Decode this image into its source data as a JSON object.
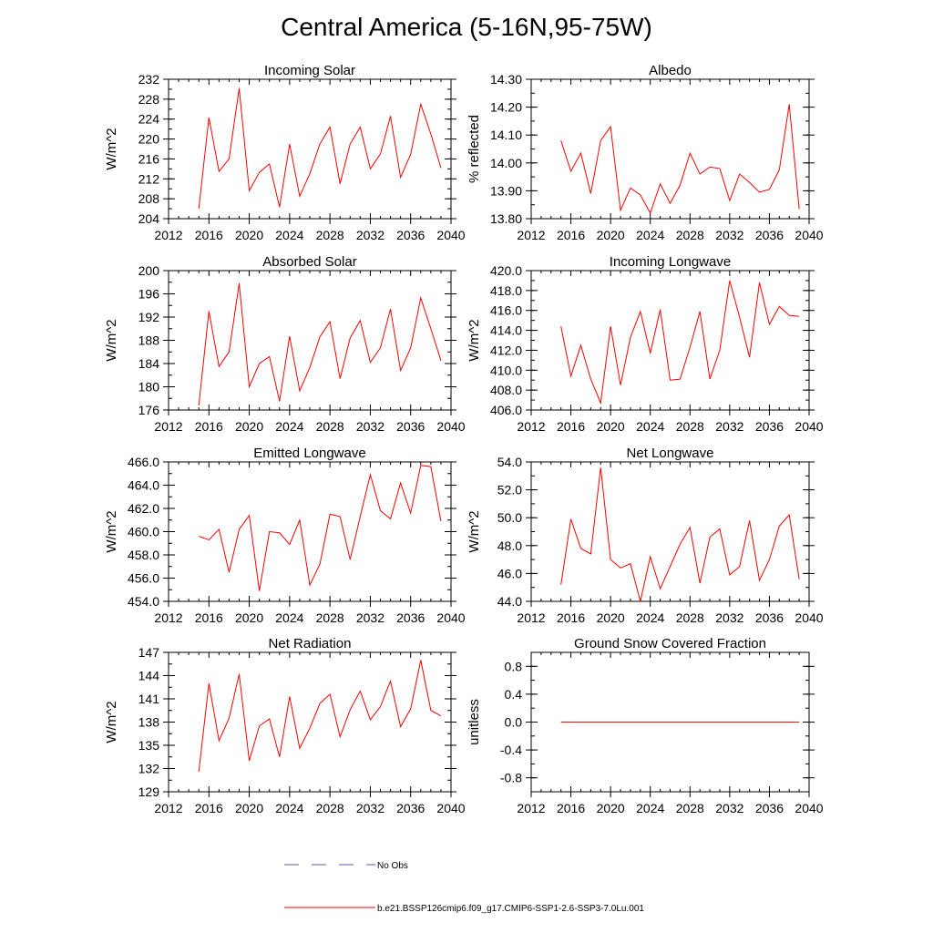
{
  "title": "Central America (5-16N,95-75W)",
  "colors": {
    "model": "#ff0000",
    "obs": "#5a5aa0",
    "axis": "#000000"
  },
  "legend": {
    "obs_label": "No Obs",
    "model_label": "b.e21.BSSP126cmip6.f09_g17.CMIP6-SSP1-2.6-SSP3-7.0Lu.001"
  },
  "chart_data": [
    {
      "type": "line",
      "title": "Incoming Solar",
      "ylabel": "W/m^2",
      "xlim": [
        2012,
        2040
      ],
      "xticks": [
        2012,
        2016,
        2020,
        2024,
        2028,
        2032,
        2036,
        2040
      ],
      "ylim": [
        204,
        232
      ],
      "yticks": [
        "204",
        "208",
        "212",
        "216",
        "220",
        "224",
        "228",
        "232"
      ],
      "x": [
        2015,
        2016,
        2017,
        2018,
        2019,
        2020,
        2021,
        2022,
        2023,
        2024,
        2025,
        2026,
        2027,
        2028,
        2029,
        2030,
        2031,
        2032,
        2033,
        2034,
        2035,
        2036,
        2037,
        2038,
        2039
      ],
      "series": [
        {
          "name": "b.e21.BSSP126cmip6.f09_g17.CMIP6-SSP1-2.6-SSP3-7.0Lu.001",
          "values": [
            206.0,
            224.3,
            213.5,
            216.0,
            230.2,
            209.6,
            213.3,
            215.0,
            206.3,
            219.0,
            208.5,
            213.0,
            219.0,
            222.4,
            211.0,
            219.0,
            222.4,
            214.0,
            217.0,
            224.6,
            212.3,
            216.9,
            227.0,
            221.0,
            214.2
          ]
        }
      ]
    },
    {
      "type": "line",
      "title": "Albedo",
      "ylabel": "% reflected",
      "xlim": [
        2012,
        2040
      ],
      "xticks": [
        2012,
        2016,
        2020,
        2024,
        2028,
        2032,
        2036,
        2040
      ],
      "ylim": [
        13.8,
        14.3
      ],
      "yticks": [
        "13.80",
        "13.90",
        "14.00",
        "14.10",
        "14.20",
        "14.30"
      ],
      "x": [
        2015,
        2016,
        2017,
        2018,
        2019,
        2020,
        2021,
        2022,
        2023,
        2024,
        2025,
        2026,
        2027,
        2028,
        2029,
        2030,
        2031,
        2032,
        2033,
        2034,
        2035,
        2036,
        2037,
        2038,
        2039
      ],
      "series": [
        {
          "name": "b.e21.BSSP126cmip6.f09_g17.CMIP6-SSP1-2.6-SSP3-7.0Lu.001",
          "values": [
            14.08,
            13.97,
            14.035,
            13.89,
            14.08,
            14.13,
            13.83,
            13.91,
            13.885,
            13.82,
            13.925,
            13.855,
            13.92,
            14.035,
            13.96,
            13.985,
            13.98,
            13.865,
            13.96,
            13.93,
            13.895,
            13.905,
            13.975,
            14.21,
            13.835
          ]
        }
      ]
    },
    {
      "type": "line",
      "title": "Absorbed Solar",
      "ylabel": "W/m^2",
      "xlim": [
        2012,
        2040
      ],
      "xticks": [
        2012,
        2016,
        2020,
        2024,
        2028,
        2032,
        2036,
        2040
      ],
      "ylim": [
        176,
        200
      ],
      "yticks": [
        "176",
        "180",
        "184",
        "188",
        "192",
        "196",
        "200"
      ],
      "x": [
        2015,
        2016,
        2017,
        2018,
        2019,
        2020,
        2021,
        2022,
        2023,
        2024,
        2025,
        2026,
        2027,
        2028,
        2029,
        2030,
        2031,
        2032,
        2033,
        2034,
        2035,
        2036,
        2037,
        2038,
        2039
      ],
      "series": [
        {
          "name": "b.e21.BSSP126cmip6.f09_g17.CMIP6-SSP1-2.6-SSP3-7.0Lu.001",
          "values": [
            176.8,
            193.0,
            183.5,
            186.0,
            197.8,
            180.0,
            184.0,
            185.2,
            177.5,
            188.7,
            179.3,
            183.3,
            188.6,
            191.2,
            181.4,
            188.4,
            191.4,
            184.2,
            186.7,
            193.4,
            182.8,
            186.7,
            195.3,
            190.0,
            184.5
          ]
        }
      ]
    },
    {
      "type": "line",
      "title": "Incoming Longwave",
      "ylabel": "W/m^2",
      "xlim": [
        2012,
        2040
      ],
      "xticks": [
        2012,
        2016,
        2020,
        2024,
        2028,
        2032,
        2036,
        2040
      ],
      "ylim": [
        406.0,
        420.0
      ],
      "yticks": [
        "406.0",
        "408.0",
        "410.0",
        "412.0",
        "414.0",
        "416.0",
        "418.0",
        "420.0"
      ],
      "x": [
        2015,
        2016,
        2017,
        2018,
        2019,
        2020,
        2021,
        2022,
        2023,
        2024,
        2025,
        2026,
        2027,
        2028,
        2029,
        2030,
        2031,
        2032,
        2033,
        2034,
        2035,
        2036,
        2037,
        2038,
        2039
      ],
      "series": [
        {
          "name": "b.e21.BSSP126cmip6.f09_g17.CMIP6-SSP1-2.6-SSP3-7.0Lu.001",
          "values": [
            414.4,
            409.4,
            412.5,
            409.1,
            406.7,
            414.4,
            408.5,
            413.3,
            415.9,
            411.7,
            416.1,
            409.0,
            409.1,
            412.3,
            415.9,
            409.1,
            412.0,
            419.0,
            415.3,
            411.3,
            418.8,
            414.6,
            416.4,
            415.5,
            415.4
          ]
        }
      ]
    },
    {
      "type": "line",
      "title": "Emitted Longwave",
      "ylabel": "W/m^2",
      "xlim": [
        2012,
        2040
      ],
      "xticks": [
        2012,
        2016,
        2020,
        2024,
        2028,
        2032,
        2036,
        2040
      ],
      "ylim": [
        454.0,
        466.0
      ],
      "yticks": [
        "454.0",
        "456.0",
        "458.0",
        "460.0",
        "462.0",
        "464.0",
        "466.0"
      ],
      "x": [
        2015,
        2016,
        2017,
        2018,
        2019,
        2020,
        2021,
        2022,
        2023,
        2024,
        2025,
        2026,
        2027,
        2028,
        2029,
        2030,
        2031,
        2032,
        2033,
        2034,
        2035,
        2036,
        2037,
        2038,
        2039
      ],
      "series": [
        {
          "name": "b.e21.BSSP126cmip6.f09_g17.CMIP6-SSP1-2.6-SSP3-7.0Lu.001",
          "values": [
            459.6,
            459.3,
            460.2,
            456.5,
            460.2,
            461.4,
            454.9,
            460.0,
            459.9,
            458.9,
            461.0,
            455.4,
            457.2,
            461.5,
            461.3,
            457.6,
            461.3,
            464.9,
            461.8,
            461.1,
            464.2,
            461.6,
            465.7,
            465.6,
            460.9
          ]
        }
      ]
    },
    {
      "type": "line",
      "title": "Net Longwave",
      "ylabel": "W/m^2",
      "xlim": [
        2012,
        2040
      ],
      "xticks": [
        2012,
        2016,
        2020,
        2024,
        2028,
        2032,
        2036,
        2040
      ],
      "ylim": [
        44.0,
        54.0
      ],
      "yticks": [
        "44.0",
        "46.0",
        "48.0",
        "50.0",
        "52.0",
        "54.0"
      ],
      "x": [
        2015,
        2016,
        2017,
        2018,
        2019,
        2020,
        2021,
        2022,
        2023,
        2024,
        2025,
        2026,
        2027,
        2028,
        2029,
        2030,
        2031,
        2032,
        2033,
        2034,
        2035,
        2036,
        2037,
        2038,
        2039
      ],
      "series": [
        {
          "name": "b.e21.BSSP126cmip6.f09_g17.CMIP6-SSP1-2.6-SSP3-7.0Lu.001",
          "values": [
            45.2,
            49.9,
            47.8,
            47.4,
            53.6,
            47.0,
            46.4,
            46.7,
            44.0,
            47.2,
            44.9,
            46.5,
            48.1,
            49.3,
            45.3,
            48.6,
            49.2,
            45.9,
            46.5,
            49.8,
            45.5,
            47.0,
            49.4,
            50.2,
            45.6
          ]
        }
      ]
    },
    {
      "type": "line",
      "title": "Net Radiation",
      "ylabel": "W/m^2",
      "xlim": [
        2012,
        2040
      ],
      "xticks": [
        2012,
        2016,
        2020,
        2024,
        2028,
        2032,
        2036,
        2040
      ],
      "ylim": [
        129,
        147
      ],
      "yticks": [
        "129",
        "132",
        "135",
        "138",
        "141",
        "144",
        "147"
      ],
      "x": [
        2015,
        2016,
        2017,
        2018,
        2019,
        2020,
        2021,
        2022,
        2023,
        2024,
        2025,
        2026,
        2027,
        2028,
        2029,
        2030,
        2031,
        2032,
        2033,
        2034,
        2035,
        2036,
        2037,
        2038,
        2039
      ],
      "series": [
        {
          "name": "b.e21.BSSP126cmip6.f09_g17.CMIP6-SSP1-2.6-SSP3-7.0Lu.001",
          "values": [
            131.6,
            143.0,
            135.6,
            138.5,
            144.2,
            133.0,
            137.5,
            138.4,
            133.5,
            141.3,
            134.6,
            137.2,
            140.4,
            141.6,
            136.1,
            139.6,
            142.0,
            138.3,
            140.0,
            143.3,
            137.4,
            139.7,
            146.0,
            139.5,
            138.8
          ]
        }
      ]
    },
    {
      "type": "line",
      "title": "Ground Snow Covered Fraction",
      "ylabel": "unitless",
      "xlim": [
        2012,
        2040
      ],
      "xticks": [
        2012,
        2016,
        2020,
        2024,
        2028,
        2032,
        2036,
        2040
      ],
      "ylim": [
        -1.0,
        1.0
      ],
      "yticks": [
        "-0.8",
        "-0.4",
        "0.0",
        "0.4",
        "0.8"
      ],
      "x": [
        2015,
        2016,
        2017,
        2018,
        2019,
        2020,
        2021,
        2022,
        2023,
        2024,
        2025,
        2026,
        2027,
        2028,
        2029,
        2030,
        2031,
        2032,
        2033,
        2034,
        2035,
        2036,
        2037,
        2038,
        2039
      ],
      "series": [
        {
          "name": "b.e21.BSSP126cmip6.f09_g17.CMIP6-SSP1-2.6-SSP3-7.0Lu.001",
          "values": [
            0,
            0,
            0,
            0,
            0,
            0,
            0,
            0,
            0,
            0,
            0,
            0,
            0,
            0,
            0,
            0,
            0,
            0,
            0,
            0,
            0,
            0,
            0,
            0,
            0
          ]
        }
      ]
    }
  ]
}
